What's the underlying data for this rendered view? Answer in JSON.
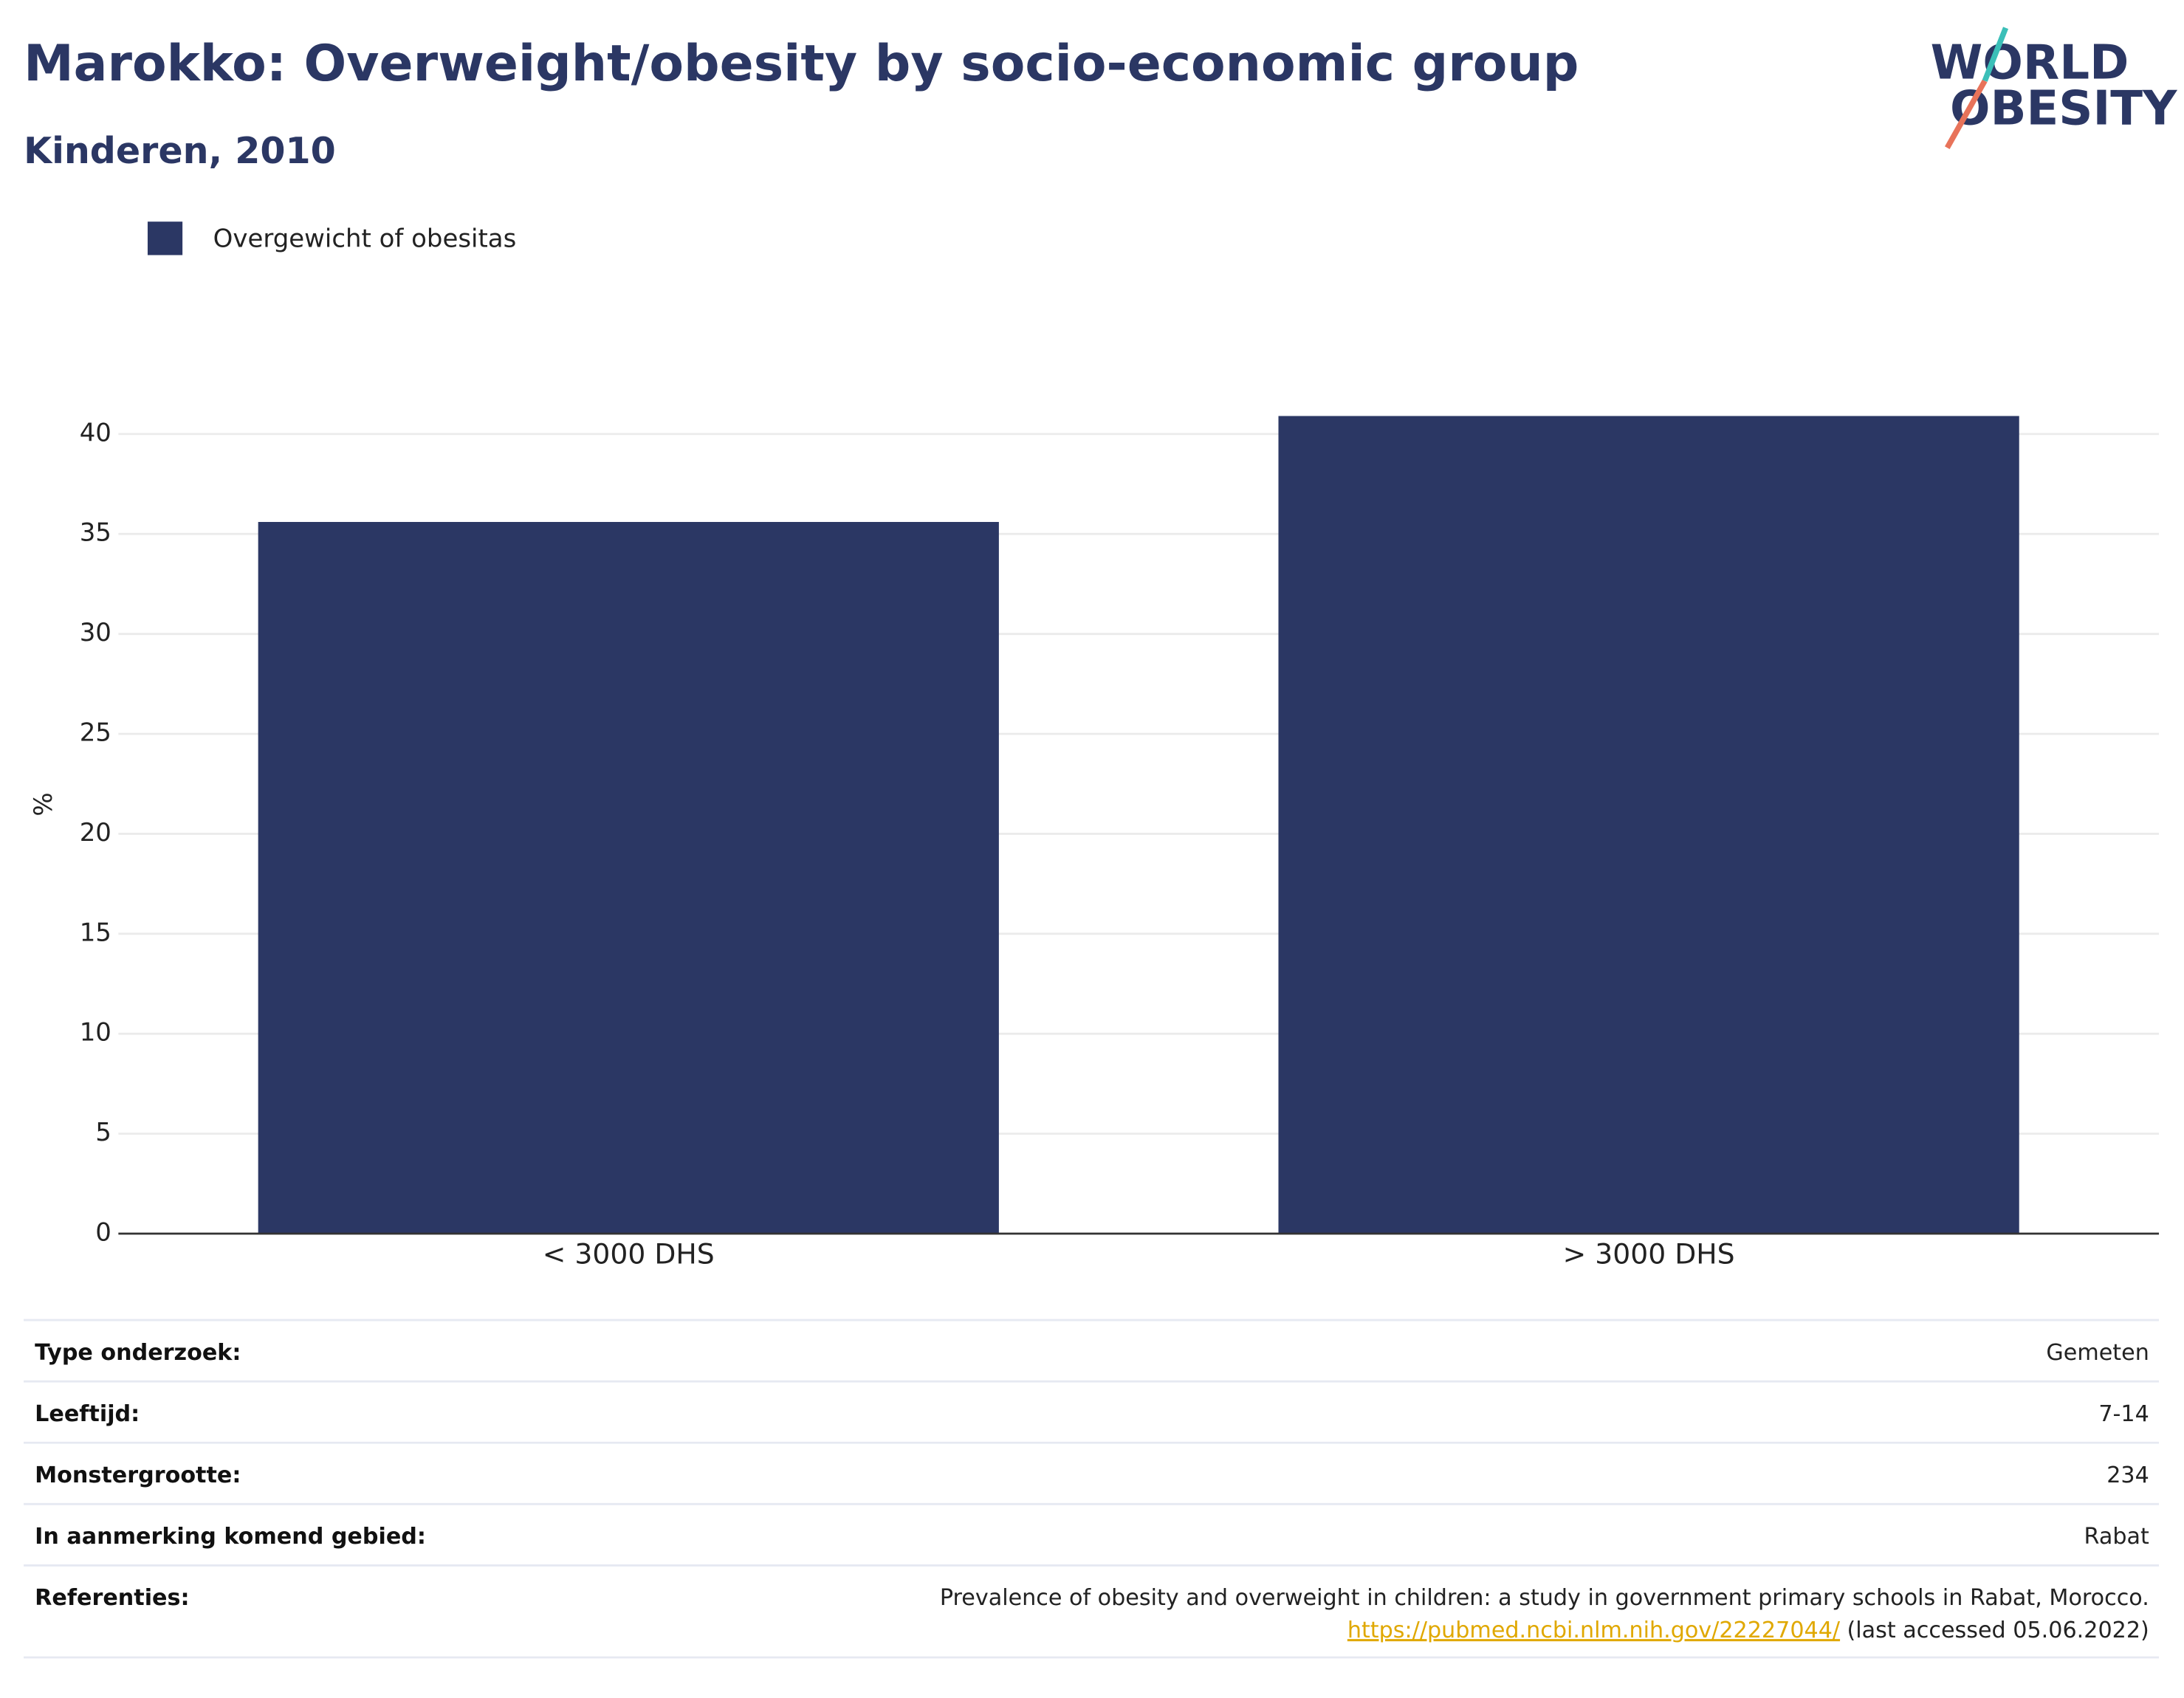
{
  "chart_data": {
    "type": "bar",
    "title": "Marokko: Overweight/obesity by socio-economic group",
    "subtitle": "Kinderen, 2010",
    "y_label": "%",
    "categories": [
      "< 3000 DHS",
      "> 3000 DHS"
    ],
    "series": [
      {
        "name": "Overgewicht of obesitas",
        "color": "#2b3764",
        "values": [
          35.6,
          40.9
        ]
      }
    ],
    "ylim": [
      0,
      41
    ],
    "yticks": [
      0,
      5,
      10,
      15,
      20,
      25,
      30,
      35,
      40
    ],
    "grid": true
  },
  "logo": [
    "WORLD",
    "OBESITY"
  ],
  "table": {
    "rows": [
      [
        "Type onderzoek:",
        "Gemeten"
      ],
      [
        "Leeftijd:",
        "7-14"
      ],
      [
        "Monstergrootte:",
        "234"
      ],
      [
        "In aanmerking komend gebied:",
        "Rabat"
      ]
    ],
    "references": {
      "label": "Referenties:",
      "text": "Prevalence of obesity and overweight in children: a study in government primary schools in Rabat, Morocco.",
      "link": "https://pubmed.ncbi.nlm.nih.gov/22227044/",
      "note": "(last accessed 05.06.2022)"
    }
  }
}
